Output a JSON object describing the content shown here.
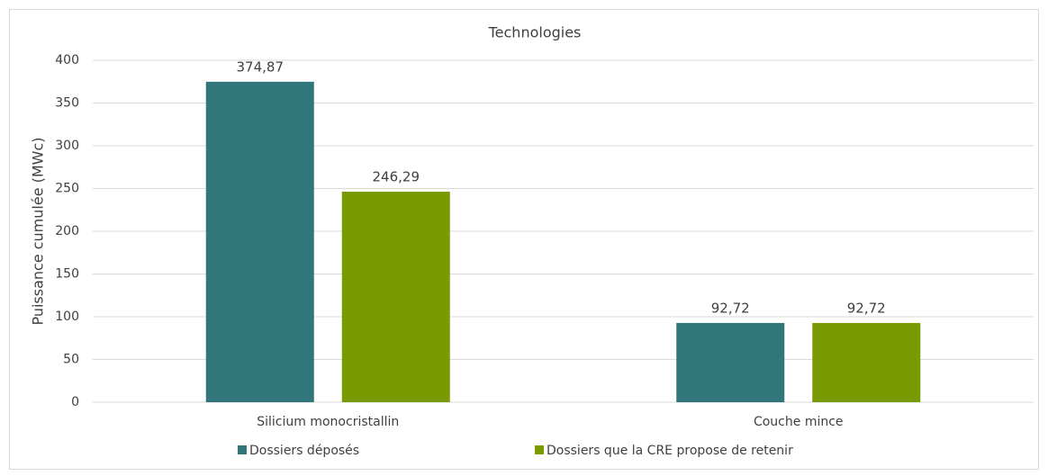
{
  "chart_data": {
    "type": "bar",
    "title": "Technologies",
    "ylabel": "Puissance cumulée (MWc)",
    "categories": [
      "Silicium monocristallin",
      "Couche mince"
    ],
    "series": [
      {
        "name": "Dossiers déposés",
        "color": "#31767a",
        "values": [
          374.87,
          92.72
        ],
        "value_labels": [
          "374,87",
          "92,72"
        ]
      },
      {
        "name": "Dossiers que la CRE propose de retenir",
        "color": "#7a9a01",
        "values": [
          246.29,
          92.72
        ],
        "value_labels": [
          "246,29",
          "92,72"
        ]
      }
    ],
    "ylim": [
      0,
      400
    ],
    "yticks": [
      0,
      50,
      100,
      150,
      200,
      250,
      300,
      350,
      400
    ],
    "grid": true,
    "legend": "bottom"
  }
}
